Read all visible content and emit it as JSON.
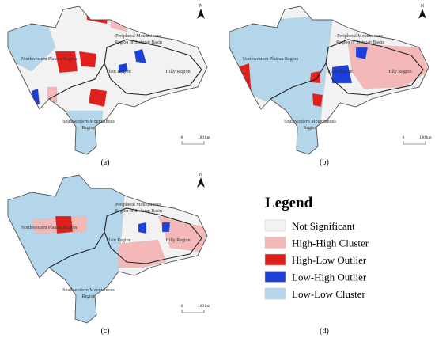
{
  "panels": [
    {
      "label": "(a)",
      "north": "N",
      "scale": [
        "0",
        "100 km"
      ],
      "regions": [
        "Northwestern Plateau Region",
        "Plain Region",
        "Peripheral Mountainous",
        "Region of Sichuan Basin",
        "Hilly Region",
        "Southwestern Mountainous",
        "Region"
      ]
    },
    {
      "label": "(b)",
      "north": "N",
      "scale": [
        "0",
        "100 km"
      ],
      "regions": [
        "Northwestern Plateau Region",
        "Plain Region",
        "Peripheral Mountainous",
        "Region of Sichuan Basin",
        "Hilly Region",
        "Southwestern Mountainous",
        "Region"
      ]
    },
    {
      "label": "(c)",
      "north": "N",
      "scale": [
        "0",
        "100 km"
      ],
      "regions": [
        "Northwestern Plateau Region",
        "Plain Region",
        "Peripheral Mountainous",
        "Region of Sichuan Basin",
        "Hilly Region",
        "Southwestern Mountainous",
        "Region"
      ]
    }
  ],
  "legend": {
    "label": "(d)",
    "title": "Legend",
    "items": [
      {
        "label": "Not Significant",
        "color": "#f2f2f2"
      },
      {
        "label": "High-High Cluster",
        "color": "#f4b8b8"
      },
      {
        "label": "High-Low Outlier",
        "color": "#e0201c"
      },
      {
        "label": "Low-High Outlier",
        "color": "#1c3fd8"
      },
      {
        "label": "Low-Low Cluster",
        "color": "#b4d6ea"
      }
    ]
  }
}
